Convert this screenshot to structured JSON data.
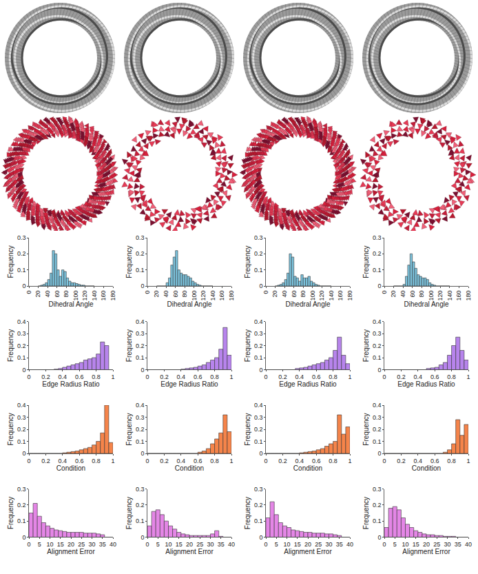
{
  "chart_data": [
    {
      "type": "histogram",
      "xlabel": "Dihedral Angle",
      "ylabel": "Frequency",
      "color": "#7cc4de",
      "bins": [
        20,
        25,
        30,
        35,
        40,
        45,
        50,
        55,
        60,
        65,
        70,
        75,
        80,
        85,
        90,
        95,
        100,
        105,
        110,
        115,
        120,
        125,
        130,
        135,
        140
      ],
      "counts": [
        0,
        0.005,
        0.01,
        0.02,
        0.04,
        0.08,
        0.22,
        0.2,
        0.1,
        0.06,
        0.1,
        0.09,
        0.05,
        0.03,
        0.02,
        0.02,
        0.015,
        0.01,
        0.005,
        0.005,
        0,
        0,
        0,
        0
      ],
      "xlim": [
        0,
        180
      ],
      "xticks": [
        0,
        20,
        40,
        60,
        80,
        100,
        120,
        140,
        160,
        180
      ],
      "ylim": [
        0,
        0.3
      ],
      "yticks": [
        0,
        0.1,
        0.2,
        0.3
      ]
    },
    {
      "type": "histogram",
      "xlabel": "Dihedral Angle",
      "ylabel": "Frequency",
      "color": "#7cc4de",
      "bins": [
        20,
        25,
        30,
        35,
        40,
        45,
        50,
        55,
        60,
        65,
        70,
        75,
        80,
        85,
        90,
        95,
        100,
        105,
        110,
        115,
        120,
        125,
        130,
        135,
        140
      ],
      "counts": [
        0,
        0,
        0,
        0,
        0.02,
        0.05,
        0.13,
        0.18,
        0.22,
        0.1,
        0.08,
        0.07,
        0.07,
        0.06,
        0.05,
        0.03,
        0.02,
        0.01,
        0.005,
        0,
        0,
        0,
        0,
        0
      ],
      "xlim": [
        0,
        180
      ],
      "xticks": [
        0,
        20,
        40,
        60,
        80,
        100,
        120,
        140,
        160,
        180
      ],
      "ylim": [
        0,
        0.3
      ],
      "yticks": [
        0,
        0.1,
        0.2,
        0.3
      ]
    },
    {
      "type": "histogram",
      "xlabel": "Dihedral Angle",
      "ylabel": "Frequency",
      "color": "#7cc4de",
      "bins": [
        20,
        25,
        30,
        35,
        40,
        45,
        50,
        55,
        60,
        65,
        70,
        75,
        80,
        85,
        90,
        95,
        100,
        105,
        110,
        115,
        120,
        125,
        130,
        135,
        140
      ],
      "counts": [
        0,
        0.005,
        0.01,
        0.02,
        0.04,
        0.08,
        0.2,
        0.18,
        0.06,
        0.05,
        0.03,
        0.07,
        0.05,
        0.05,
        0.06,
        0.03,
        0.02,
        0.01,
        0.005,
        0,
        0,
        0,
        0,
        0
      ],
      "xlim": [
        0,
        180
      ],
      "xticks": [
        0,
        20,
        40,
        60,
        80,
        100,
        120,
        140,
        160,
        180
      ],
      "ylim": [
        0,
        0.3
      ],
      "yticks": [
        0,
        0.1,
        0.2,
        0.3
      ]
    },
    {
      "type": "histogram",
      "xlabel": "Dihedral Angle",
      "ylabel": "Frequency",
      "color": "#7cc4de",
      "bins": [
        20,
        25,
        30,
        35,
        40,
        45,
        50,
        55,
        60,
        65,
        70,
        75,
        80,
        85,
        90,
        95,
        100,
        105,
        110,
        115,
        120,
        125,
        130,
        135,
        140
      ],
      "counts": [
        0,
        0,
        0,
        0,
        0.01,
        0.06,
        0.13,
        0.2,
        0.15,
        0.11,
        0.07,
        0.06,
        0.05,
        0.05,
        0.04,
        0.02,
        0.01,
        0.005,
        0,
        0,
        0,
        0,
        0,
        0
      ],
      "xlim": [
        0,
        180
      ],
      "xticks": [
        0,
        20,
        40,
        60,
        80,
        100,
        120,
        140,
        160,
        180
      ],
      "ylim": [
        0,
        0.3
      ],
      "yticks": [
        0,
        0.1,
        0.2,
        0.3
      ]
    },
    {
      "type": "histogram",
      "xlabel": "Edge Radius Ratio",
      "ylabel": "Frequency",
      "color": "#b784ec",
      "bins": [
        0,
        0.05,
        0.1,
        0.15,
        0.2,
        0.25,
        0.3,
        0.35,
        0.4,
        0.45,
        0.5,
        0.55,
        0.6,
        0.65,
        0.7,
        0.75,
        0.8,
        0.85,
        0.9,
        0.95,
        1
      ],
      "counts": [
        0,
        0,
        0,
        0,
        0,
        0,
        0.005,
        0.01,
        0.02,
        0.03,
        0.04,
        0.05,
        0.06,
        0.08,
        0.09,
        0.1,
        0.13,
        0.23,
        0.2,
        0
      ],
      "xlim": [
        0,
        1
      ],
      "xticks": [
        0,
        0.2,
        0.4,
        0.6,
        0.8,
        1
      ],
      "ylim": [
        0,
        0.4
      ],
      "yticks": [
        0,
        0.1,
        0.2,
        0.3,
        0.4
      ]
    },
    {
      "type": "histogram",
      "xlabel": "Edge Radius Ratio",
      "ylabel": "Frequency",
      "color": "#b784ec",
      "bins": [
        0,
        0.05,
        0.1,
        0.15,
        0.2,
        0.25,
        0.3,
        0.35,
        0.4,
        0.45,
        0.5,
        0.55,
        0.6,
        0.65,
        0.7,
        0.75,
        0.8,
        0.85,
        0.9,
        0.95,
        1
      ],
      "counts": [
        0,
        0,
        0,
        0,
        0,
        0,
        0,
        0,
        0.005,
        0.01,
        0.015,
        0.02,
        0.03,
        0.04,
        0.06,
        0.08,
        0.1,
        0.17,
        0.35,
        0.12
      ],
      "xlim": [
        0,
        1
      ],
      "xticks": [
        0,
        0.2,
        0.4,
        0.6,
        0.8,
        1
      ],
      "ylim": [
        0,
        0.4
      ],
      "yticks": [
        0,
        0.1,
        0.2,
        0.3,
        0.4
      ]
    },
    {
      "type": "histogram",
      "xlabel": "Edge Radius Ratio",
      "ylabel": "Frequency",
      "color": "#b784ec",
      "bins": [
        0,
        0.05,
        0.1,
        0.15,
        0.2,
        0.25,
        0.3,
        0.35,
        0.4,
        0.45,
        0.5,
        0.55,
        0.6,
        0.65,
        0.7,
        0.75,
        0.8,
        0.85,
        0.9,
        0.95,
        1
      ],
      "counts": [
        0,
        0,
        0,
        0,
        0,
        0,
        0,
        0.01,
        0.015,
        0.02,
        0.03,
        0.04,
        0.05,
        0.06,
        0.08,
        0.1,
        0.16,
        0.27,
        0.12,
        0.05
      ],
      "xlim": [
        0,
        1
      ],
      "xticks": [
        0,
        0.2,
        0.4,
        0.6,
        0.8,
        1
      ],
      "ylim": [
        0,
        0.4
      ],
      "yticks": [
        0,
        0.1,
        0.2,
        0.3,
        0.4
      ]
    },
    {
      "type": "histogram",
      "xlabel": "Edge Radius Ratio",
      "ylabel": "Frequency",
      "color": "#b784ec",
      "bins": [
        0,
        0.05,
        0.1,
        0.15,
        0.2,
        0.25,
        0.3,
        0.35,
        0.4,
        0.45,
        0.5,
        0.55,
        0.6,
        0.65,
        0.7,
        0.75,
        0.8,
        0.85,
        0.9,
        0.95,
        1
      ],
      "counts": [
        0,
        0,
        0,
        0,
        0,
        0,
        0,
        0,
        0,
        0,
        0.01,
        0.015,
        0.02,
        0.04,
        0.06,
        0.12,
        0.2,
        0.27,
        0.16,
        0.08
      ],
      "xlim": [
        0,
        1
      ],
      "xticks": [
        0,
        0.2,
        0.4,
        0.6,
        0.8,
        1
      ],
      "ylim": [
        0,
        0.4
      ],
      "yticks": [
        0,
        0.1,
        0.2,
        0.3,
        0.4
      ]
    },
    {
      "type": "histogram",
      "xlabel": "Condition",
      "ylabel": "Frequency",
      "color": "#f5844a",
      "bins": [
        0,
        0.05,
        0.1,
        0.15,
        0.2,
        0.25,
        0.3,
        0.35,
        0.4,
        0.45,
        0.5,
        0.55,
        0.6,
        0.65,
        0.7,
        0.75,
        0.8,
        0.85,
        0.9,
        0.95,
        1
      ],
      "counts": [
        0,
        0,
        0,
        0,
        0,
        0,
        0,
        0,
        0.005,
        0.01,
        0.015,
        0.02,
        0.03,
        0.04,
        0.05,
        0.07,
        0.1,
        0.17,
        0.4,
        0.09
      ],
      "xlim": [
        0,
        1
      ],
      "xticks": [
        0,
        0.2,
        0.4,
        0.6,
        0.8,
        1
      ],
      "ylim": [
        0,
        0.4
      ],
      "yticks": [
        0,
        0.1,
        0.2,
        0.3,
        0.4
      ]
    },
    {
      "type": "histogram",
      "xlabel": "Condition",
      "ylabel": "Frequency",
      "color": "#f5844a",
      "bins": [
        0,
        0.05,
        0.1,
        0.15,
        0.2,
        0.25,
        0.3,
        0.35,
        0.4,
        0.45,
        0.5,
        0.55,
        0.6,
        0.65,
        0.7,
        0.75,
        0.8,
        0.85,
        0.9,
        0.95,
        1
      ],
      "counts": [
        0,
        0,
        0,
        0,
        0,
        0,
        0,
        0,
        0,
        0,
        0,
        0,
        0.01,
        0.02,
        0.04,
        0.08,
        0.12,
        0.17,
        0.32,
        0.18
      ],
      "xlim": [
        0,
        1
      ],
      "xticks": [
        0,
        0.2,
        0.4,
        0.6,
        0.8,
        1
      ],
      "ylim": [
        0,
        0.4
      ],
      "yticks": [
        0,
        0.1,
        0.2,
        0.3,
        0.4
      ]
    },
    {
      "type": "histogram",
      "xlabel": "Condition",
      "ylabel": "Frequency",
      "color": "#f5844a",
      "bins": [
        0,
        0.05,
        0.1,
        0.15,
        0.2,
        0.25,
        0.3,
        0.35,
        0.4,
        0.45,
        0.5,
        0.55,
        0.6,
        0.65,
        0.7,
        0.75,
        0.8,
        0.85,
        0.9,
        0.95,
        1
      ],
      "counts": [
        0,
        0,
        0,
        0,
        0,
        0,
        0,
        0,
        0.005,
        0.01,
        0.015,
        0.02,
        0.03,
        0.04,
        0.06,
        0.08,
        0.1,
        0.32,
        0.16,
        0.22
      ],
      "xlim": [
        0,
        1
      ],
      "xticks": [
        0,
        0.2,
        0.4,
        0.6,
        0.8,
        1
      ],
      "ylim": [
        0,
        0.4
      ],
      "yticks": [
        0,
        0.1,
        0.2,
        0.3,
        0.4
      ]
    },
    {
      "type": "histogram",
      "xlabel": "Condition",
      "ylabel": "Frequency",
      "color": "#f5844a",
      "bins": [
        0,
        0.05,
        0.1,
        0.15,
        0.2,
        0.25,
        0.3,
        0.35,
        0.4,
        0.45,
        0.5,
        0.55,
        0.6,
        0.65,
        0.7,
        0.75,
        0.8,
        0.85,
        0.9,
        0.95,
        1
      ],
      "counts": [
        0,
        0,
        0,
        0,
        0,
        0,
        0,
        0,
        0,
        0,
        0,
        0,
        0,
        0,
        0.01,
        0.03,
        0.08,
        0.28,
        0.15,
        0.24
      ],
      "xlim": [
        0,
        1
      ],
      "xticks": [
        0,
        0.2,
        0.4,
        0.6,
        0.8,
        1
      ],
      "ylim": [
        0,
        0.4
      ],
      "yticks": [
        0,
        0.1,
        0.2,
        0.3,
        0.4
      ]
    },
    {
      "type": "histogram",
      "xlabel": "Alignment Error",
      "ylabel": "Frequency",
      "color": "#e486e6",
      "bins": [
        0,
        2,
        4,
        6,
        8,
        10,
        12,
        14,
        16,
        18,
        20,
        22,
        24,
        26,
        28,
        30,
        32,
        34,
        36,
        38,
        40
      ],
      "counts": [
        0.15,
        0.21,
        0.13,
        0.09,
        0.07,
        0.055,
        0.045,
        0.04,
        0.035,
        0.03,
        0.03,
        0.03,
        0.03,
        0.025,
        0.025,
        0.025,
        0.02,
        0.015,
        0,
        0
      ],
      "xlim": [
        0,
        40
      ],
      "xticks": [
        0,
        5,
        10,
        15,
        20,
        25,
        30,
        35,
        40
      ],
      "ylim": [
        0,
        0.3
      ],
      "yticks": [
        0,
        0.1,
        0.2,
        0.3
      ]
    },
    {
      "type": "histogram",
      "xlabel": "Alignment Error",
      "ylabel": "Frequency",
      "color": "#e486e6",
      "bins": [
        0,
        2,
        4,
        6,
        8,
        10,
        12,
        14,
        16,
        18,
        20,
        22,
        24,
        26,
        28,
        30,
        32,
        34,
        36,
        38,
        40
      ],
      "counts": [
        0.07,
        0.16,
        0.17,
        0.14,
        0.1,
        0.07,
        0.05,
        0.03,
        0.02,
        0.015,
        0.01,
        0.01,
        0.01,
        0.01,
        0.01,
        0.02,
        0.04,
        0.005,
        0,
        0
      ],
      "xlim": [
        0,
        40
      ],
      "xticks": [
        0,
        5,
        10,
        15,
        20,
        25,
        30,
        35,
        40
      ],
      "ylim": [
        0,
        0.3
      ],
      "yticks": [
        0,
        0.1,
        0.2,
        0.3
      ]
    },
    {
      "type": "histogram",
      "xlabel": "Alignment Error",
      "ylabel": "Frequency",
      "color": "#e486e6",
      "bins": [
        0,
        2,
        4,
        6,
        8,
        10,
        12,
        14,
        16,
        18,
        20,
        22,
        24,
        26,
        28,
        30,
        32,
        34,
        36,
        38,
        40
      ],
      "counts": [
        0.12,
        0.22,
        0.14,
        0.09,
        0.07,
        0.06,
        0.045,
        0.04,
        0.035,
        0.03,
        0.03,
        0.025,
        0.025,
        0.025,
        0.02,
        0.02,
        0.015,
        0.01,
        0,
        0
      ],
      "xlim": [
        0,
        40
      ],
      "xticks": [
        0,
        5,
        10,
        15,
        20,
        25,
        30,
        35,
        40
      ],
      "ylim": [
        0,
        0.3
      ],
      "yticks": [
        0,
        0.1,
        0.2,
        0.3
      ]
    },
    {
      "type": "histogram",
      "xlabel": "Alignment Error",
      "ylabel": "Frequency",
      "color": "#e486e6",
      "bins": [
        0,
        2,
        4,
        6,
        8,
        10,
        12,
        14,
        16,
        18,
        20,
        22,
        24,
        26,
        28,
        30,
        32,
        34,
        36,
        38,
        40
      ],
      "counts": [
        0.06,
        0.18,
        0.19,
        0.17,
        0.12,
        0.08,
        0.06,
        0.04,
        0.03,
        0.02,
        0.015,
        0.015,
        0.01,
        0.01,
        0.005,
        0.005,
        0.005,
        0,
        0,
        0
      ],
      "xlim": [
        0,
        40
      ],
      "xticks": [
        0,
        5,
        10,
        15,
        20,
        25,
        30,
        35,
        40
      ],
      "ylim": [
        0,
        0.3
      ],
      "yticks": [
        0,
        0.1,
        0.2,
        0.3
      ]
    }
  ]
}
